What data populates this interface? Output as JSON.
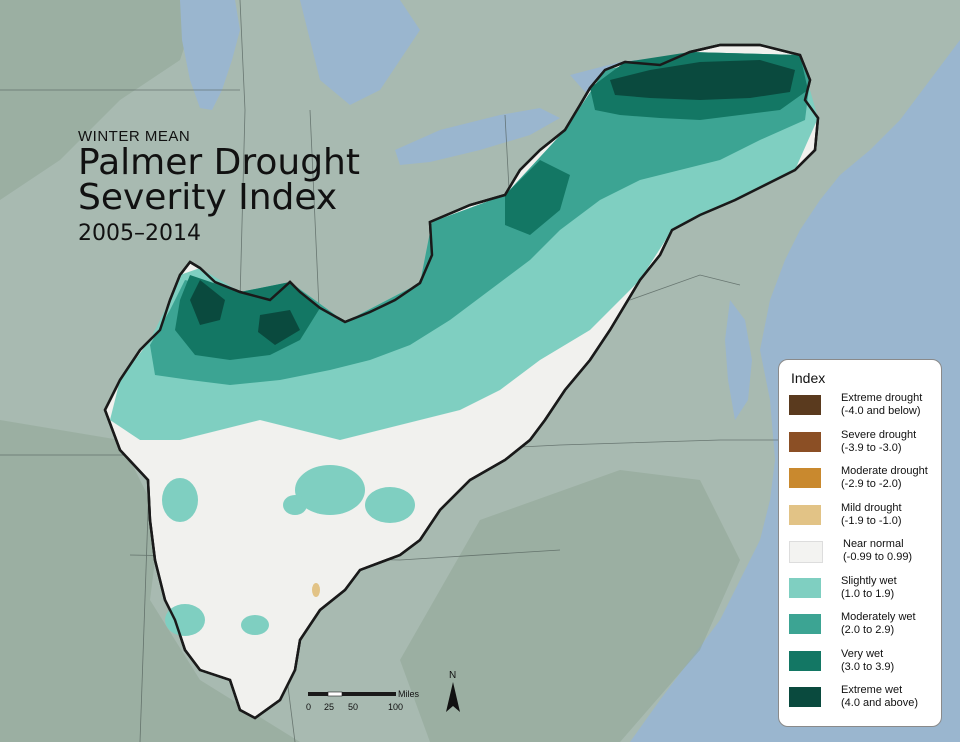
{
  "title": {
    "pre": "WINTER MEAN",
    "line1": "Palmer Drought",
    "line2": "Severity Index",
    "years": "2005–2014"
  },
  "legend": {
    "title": "Index",
    "items": [
      {
        "label": "Extreme drought",
        "range": "(-4.0 and below)",
        "color": "#5a3a1e"
      },
      {
        "label": "Severe drought",
        "range": "(-3.9 to -3.0)",
        "color": "#8b4f25"
      },
      {
        "label": "Moderate drought",
        "range": "(-2.9 to -2.0)",
        "color": "#c9892e"
      },
      {
        "label": "Mild drought",
        "range": "(-1.9 to -1.0)",
        "color": "#e2c386"
      },
      {
        "label": "Near normal",
        "range": "(-0.99 to 0.99)",
        "color": "#f3f3f1"
      },
      {
        "label": "Slightly wet",
        "range": "(1.0 to 1.9)",
        "color": "#7fcfc1"
      },
      {
        "label": "Moderately wet",
        "range": "(2.0 to 2.9)",
        "color": "#3ca493"
      },
      {
        "label": "Very wet",
        "range": "(3.0 to 3.9)",
        "color": "#137764"
      },
      {
        "label": "Extreme wet",
        "range": "(4.0 and above)",
        "color": "#0a4a3e"
      }
    ]
  },
  "scale": {
    "unit": "Miles",
    "ticks": [
      "0",
      "25",
      "50",
      "100"
    ]
  },
  "north_label": "N",
  "colors": {
    "water": "#9ab6cf",
    "land": "#a6b8b0",
    "region_outline": "#1a1a1a"
  }
}
